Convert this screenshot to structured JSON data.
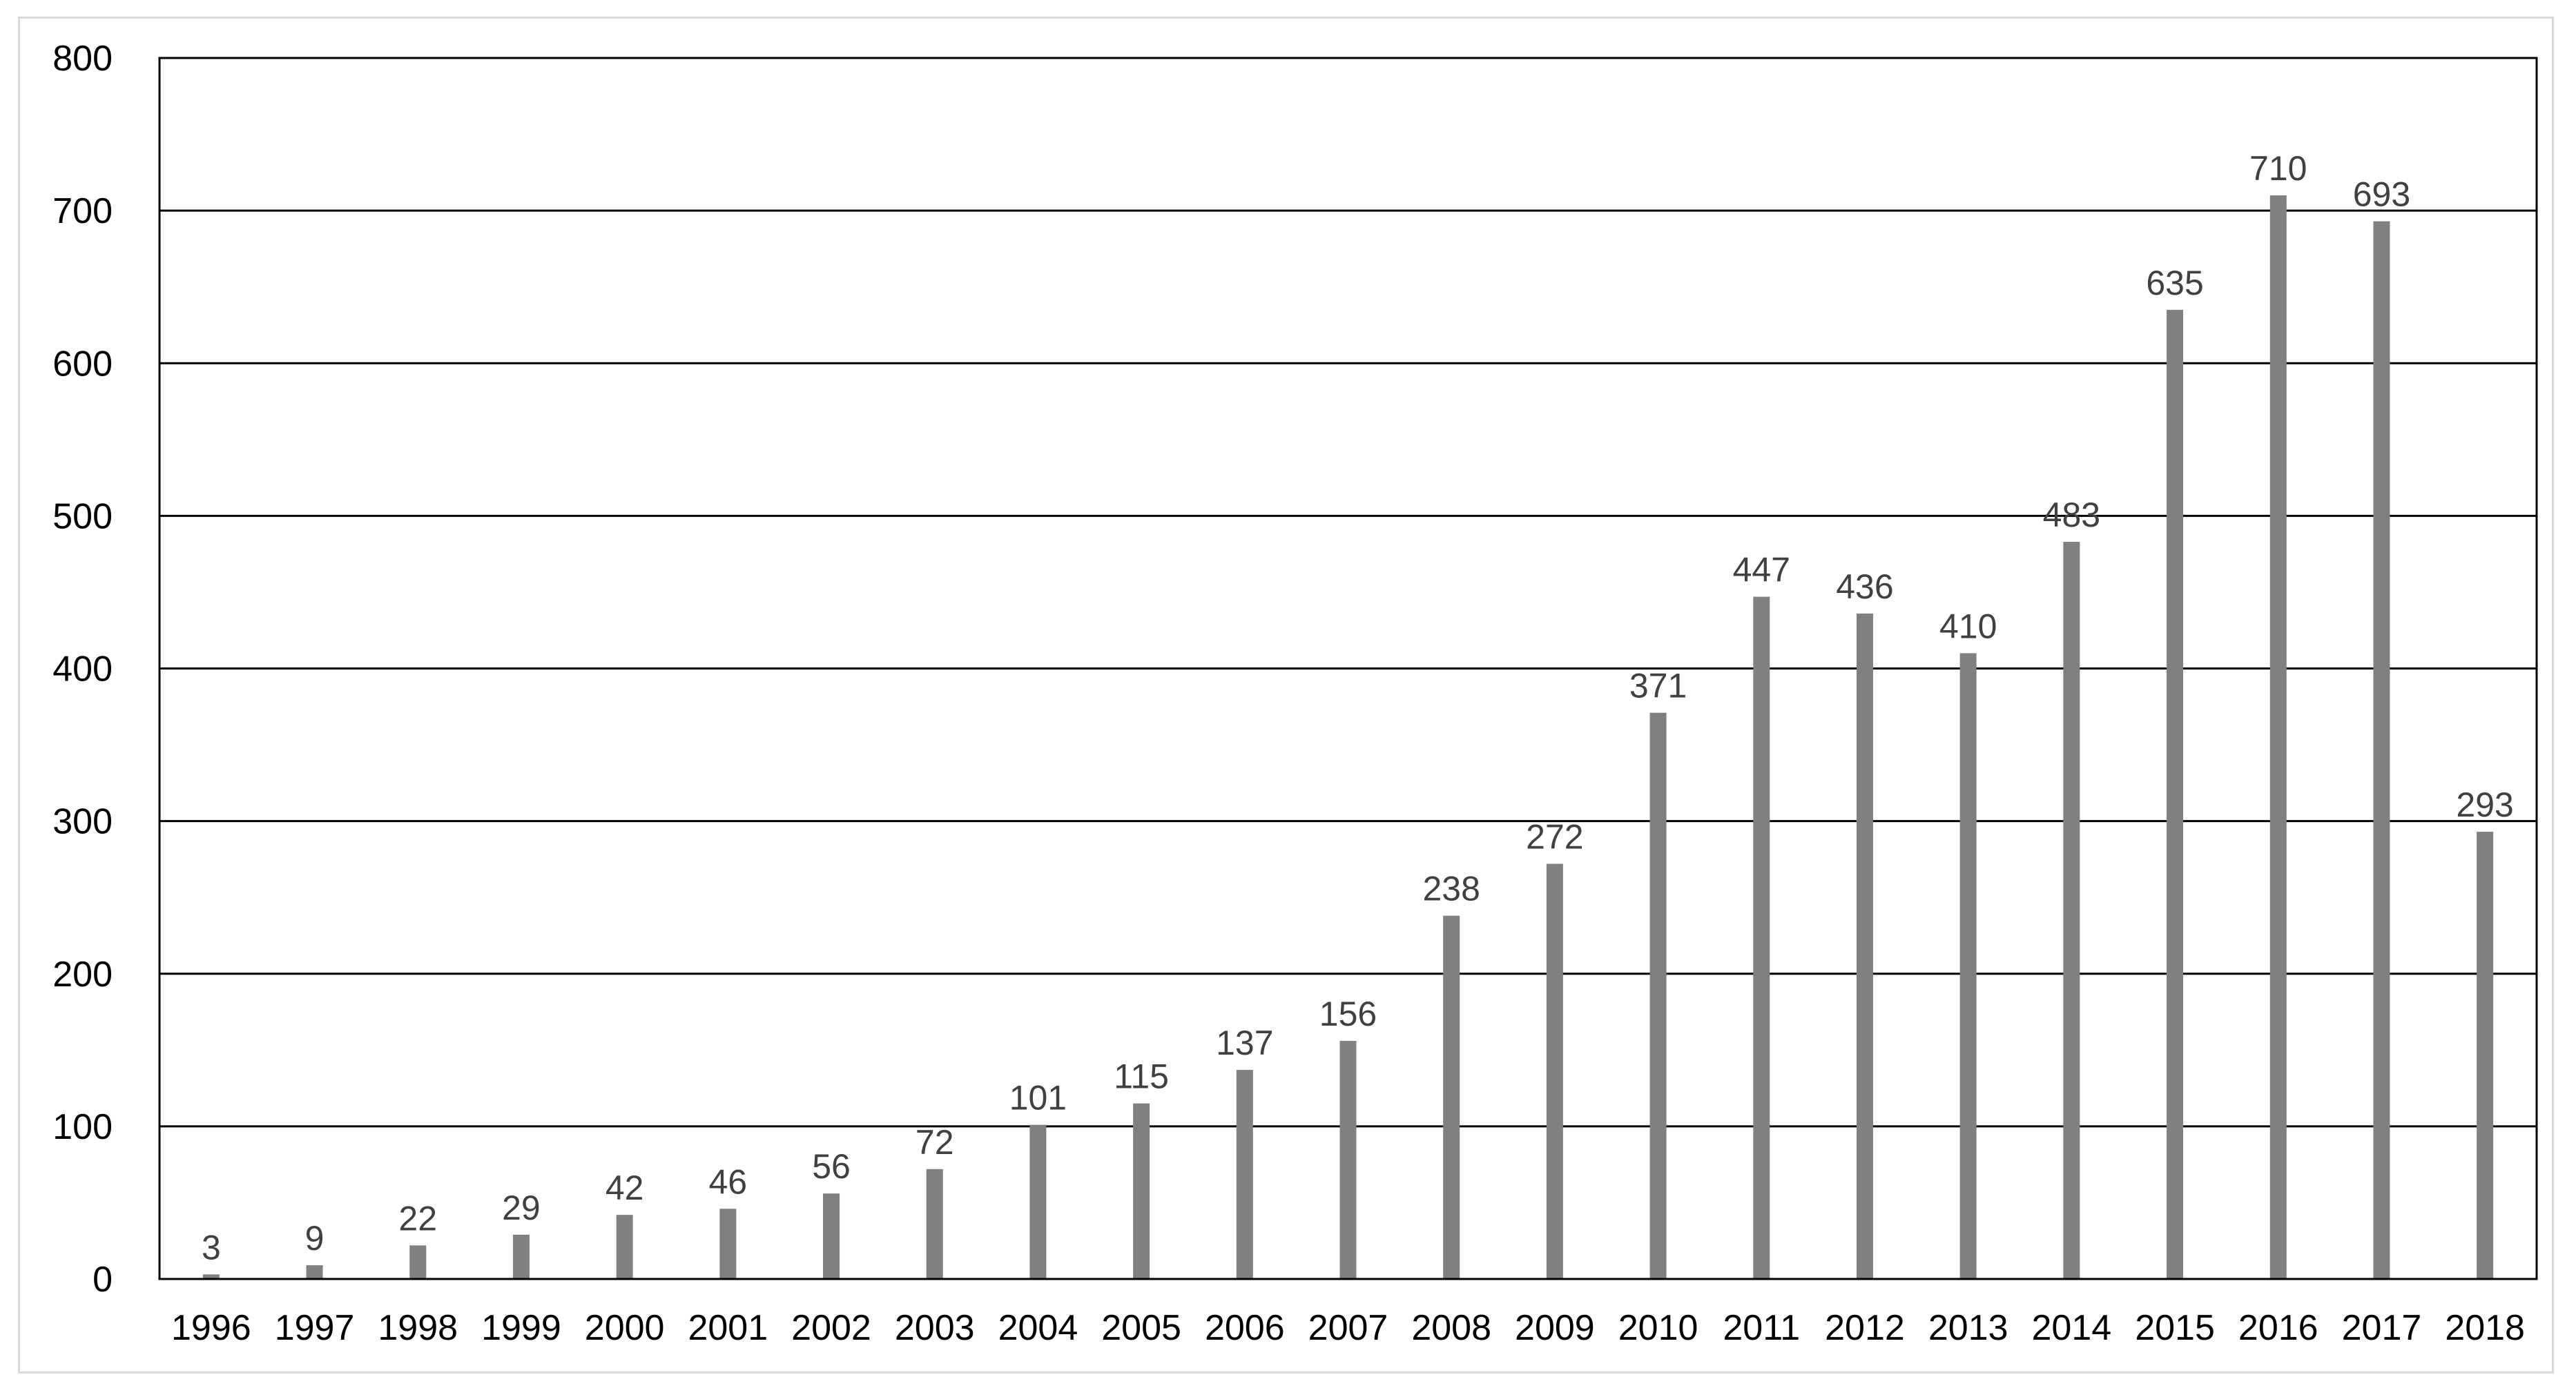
{
  "chart_data": {
    "type": "bar",
    "title": "",
    "xlabel": "",
    "ylabel": "",
    "categories": [
      "1996",
      "1997",
      "1998",
      "1999",
      "2000",
      "2001",
      "2002",
      "2003",
      "2004",
      "2005",
      "2006",
      "2007",
      "2008",
      "2009",
      "2010",
      "2011",
      "2012",
      "2013",
      "2014",
      "2015",
      "2016",
      "2017",
      "2018"
    ],
    "values": [
      3,
      9,
      22,
      29,
      42,
      46,
      56,
      72,
      101,
      115,
      137,
      156,
      238,
      272,
      371,
      447,
      436,
      410,
      483,
      635,
      710,
      693,
      293
    ],
    "ylim": [
      0,
      800
    ],
    "yticks": [
      0,
      100,
      200,
      300,
      400,
      500,
      600,
      700,
      800
    ],
    "grid": true,
    "legend": "none",
    "bar_color": "#808080",
    "data_labels": true
  }
}
